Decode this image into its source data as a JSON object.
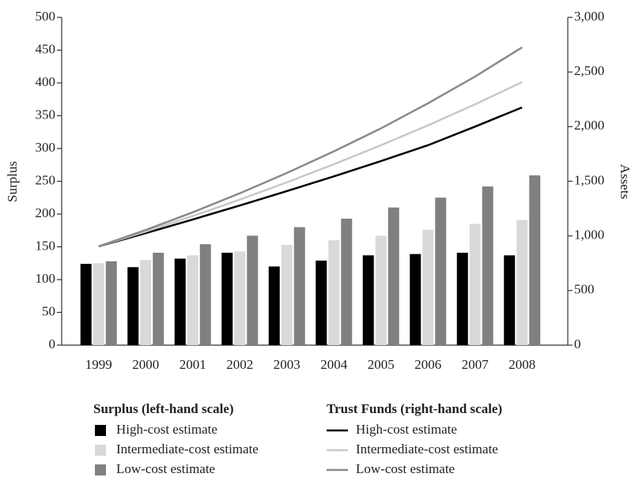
{
  "chart_data": {
    "type": "bar",
    "y_label": "Surplus",
    "y2_label": "Assets",
    "categories": [
      "1999",
      "2000",
      "2001",
      "2002",
      "2003",
      "2004",
      "2005",
      "2006",
      "2007",
      "2008"
    ],
    "ylim": [
      0,
      500
    ],
    "yticks": [
      0,
      50,
      100,
      150,
      200,
      250,
      300,
      350,
      400,
      450,
      500
    ],
    "y2lim": [
      0,
      3000
    ],
    "y2ticks": [
      0,
      500,
      {
        "value": 1000,
        "label": "1,000"
      },
      {
        "value": 1500,
        "label": "1,500"
      },
      {
        "value": 2000,
        "label": "2,000"
      },
      {
        "value": 2500,
        "label": "2,500"
      },
      {
        "value": 3000,
        "label": "3,000"
      }
    ],
    "legend_titles": [
      "Surplus (left-hand scale)",
      "Trust Funds (right-hand scale)"
    ],
    "series": [
      {
        "name": "High-cost estimate",
        "type": "bar",
        "color": "#000000",
        "values": [
          124,
          119,
          132,
          141,
          120,
          129,
          137,
          139,
          141,
          137
        ]
      },
      {
        "name": "Intermediate-cost estimate",
        "type": "bar",
        "color": "#d9d9d9",
        "values": [
          125,
          130,
          137,
          143,
          153,
          160,
          167,
          176,
          185,
          191
        ]
      },
      {
        "name": "Low-cost estimate",
        "type": "bar",
        "color": "#808080",
        "values": [
          128,
          141,
          154,
          167,
          180,
          193,
          210,
          225,
          242,
          259
        ]
      },
      {
        "name": "High-cost estimate",
        "type": "line",
        "axis": "y2",
        "color": "#000000",
        "values": [
          904,
          1025,
          1150,
          1278,
          1410,
          1545,
          1685,
          1830,
          2000,
          2176
        ]
      },
      {
        "name": "Intermediate-cost estimate",
        "type": "line",
        "axis": "y2",
        "color": "#c8c8c8",
        "values": [
          904,
          1040,
          1182,
          1332,
          1490,
          1656,
          1830,
          2012,
          2204,
          2408
        ]
      },
      {
        "name": "Low-cost estimate",
        "type": "line",
        "axis": "y2",
        "color": "#8a8a8a",
        "values": [
          904,
          1054,
          1216,
          1390,
          1576,
          1774,
          1984,
          2214,
          2458,
          2726
        ]
      }
    ]
  }
}
